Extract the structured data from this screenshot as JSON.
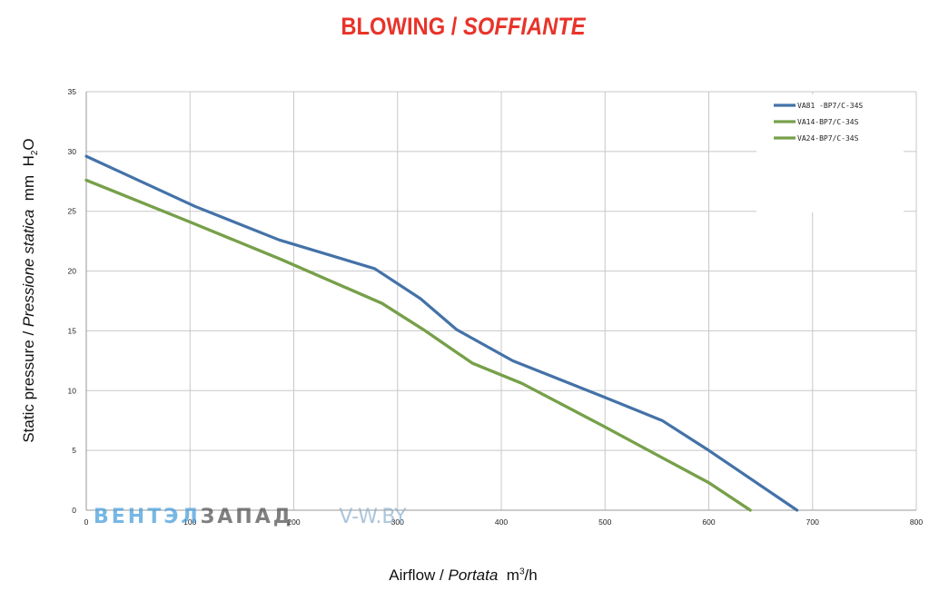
{
  "title": {
    "main": "BLOWING /",
    "italic": "SOFFIANTE"
  },
  "watermark": {
    "part1": "ВЕНТЭЛ",
    "part2": "ЗАПАД",
    "part3": "V-W.BY"
  },
  "colors": {
    "title": "#e8332a",
    "blue": "#4472a8",
    "green": "#77a04a",
    "grid": "#c8c8c8"
  },
  "chart_data": {
    "type": "line",
    "title": "BLOWING / SOFFIANTE",
    "xlabel": {
      "main": "Airflow /",
      "italic": "Portata",
      "unit": "m³/h"
    },
    "ylabel": {
      "main": "Static pressure /",
      "italic": "Pressione statica",
      "unit": "mm H₂O"
    },
    "xlim": [
      0,
      800
    ],
    "ylim": [
      0,
      35
    ],
    "xticks": [
      0,
      100,
      200,
      300,
      400,
      500,
      600,
      700,
      800
    ],
    "yticks": [
      0,
      5,
      10,
      15,
      20,
      25,
      30,
      35
    ],
    "grid": true,
    "legend_position": "top-right",
    "series": [
      {
        "name": "VA81  -BP7/C-34S",
        "color": "#4472a8",
        "points": [
          [
            0,
            29.6
          ],
          [
            105,
            25.4
          ],
          [
            186,
            22.6
          ],
          [
            278,
            20.2
          ],
          [
            322,
            17.7
          ],
          [
            357,
            15.1
          ],
          [
            411,
            12.5
          ],
          [
            498,
            9.5
          ],
          [
            555,
            7.5
          ],
          [
            600,
            5.0
          ],
          [
            685,
            0
          ]
        ]
      },
      {
        "name": "VA14-BP7/C-34S",
        "color": "#77a04a",
        "points": [
          [
            0,
            27.6
          ],
          [
            100,
            24.1
          ],
          [
            187,
            21.0
          ],
          [
            285,
            17.3
          ],
          [
            325,
            15.1
          ],
          [
            372,
            12.3
          ],
          [
            420,
            10.6
          ],
          [
            497,
            7.1
          ],
          [
            557,
            4.3
          ],
          [
            600,
            2.3
          ],
          [
            640,
            0
          ]
        ]
      },
      {
        "name": "VA24-BP7/C-34S",
        "color": "#77a04a",
        "points": [
          [
            0,
            27.6
          ],
          [
            100,
            24.1
          ],
          [
            187,
            21.0
          ],
          [
            285,
            17.3
          ],
          [
            325,
            15.1
          ],
          [
            372,
            12.3
          ],
          [
            420,
            10.6
          ],
          [
            497,
            7.1
          ],
          [
            557,
            4.3
          ],
          [
            600,
            2.3
          ],
          [
            640,
            0
          ]
        ]
      }
    ]
  }
}
